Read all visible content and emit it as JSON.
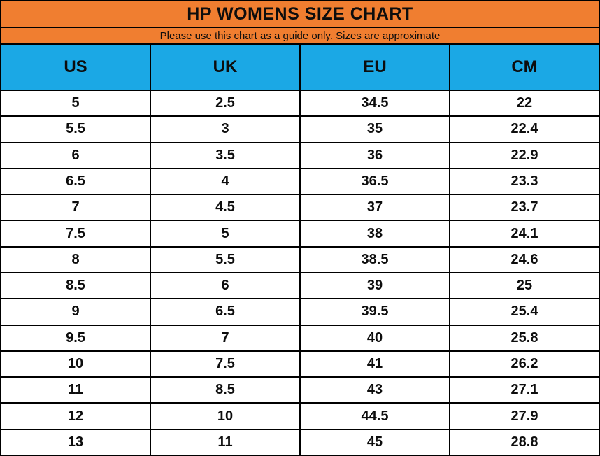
{
  "title": "HP WOMENS SIZE CHART",
  "subtitle": "Please use this chart as a guide only. Sizes are approximate",
  "colors": {
    "title_background": "#F07E30",
    "column_header_background": "#1BA8E5",
    "grid_border": "#000000",
    "row_background": "#FFFFFF",
    "text": "#0D0D0D"
  },
  "chart_data": {
    "type": "table",
    "title": "HP WOMENS SIZE CHART",
    "subtitle": "Please use this chart as a guide only. Sizes are approximate",
    "columns": [
      "US",
      "UK",
      "EU",
      "CM"
    ],
    "rows": [
      [
        "5",
        "2.5",
        "34.5",
        "22"
      ],
      [
        "5.5",
        "3",
        "35",
        "22.4"
      ],
      [
        "6",
        "3.5",
        "36",
        "22.9"
      ],
      [
        "6.5",
        "4",
        "36.5",
        "23.3"
      ],
      [
        "7",
        "4.5",
        "37",
        "23.7"
      ],
      [
        "7.5",
        "5",
        "38",
        "24.1"
      ],
      [
        "8",
        "5.5",
        "38.5",
        "24.6"
      ],
      [
        "8.5",
        "6",
        "39",
        "25"
      ],
      [
        "9",
        "6.5",
        "39.5",
        "25.4"
      ],
      [
        "9.5",
        "7",
        "40",
        "25.8"
      ],
      [
        "10",
        "7.5",
        "41",
        "26.2"
      ],
      [
        "11",
        "8.5",
        "43",
        "27.1"
      ],
      [
        "12",
        "10",
        "44.5",
        "27.9"
      ],
      [
        "13",
        "11",
        "45",
        "28.8"
      ]
    ]
  }
}
